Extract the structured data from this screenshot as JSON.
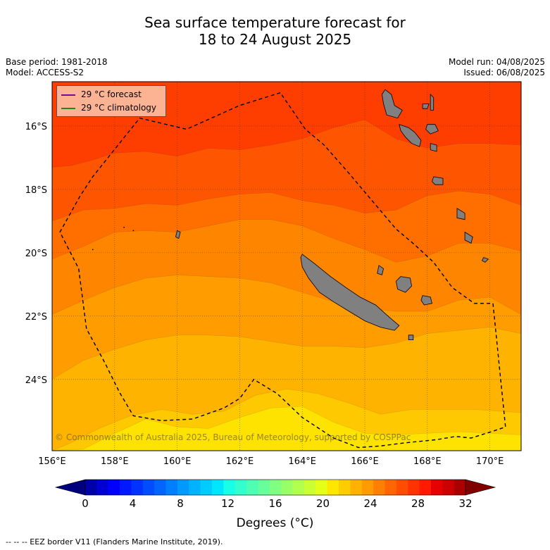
{
  "title": {
    "line1": "Sea surface temperature forecast for",
    "line2": "18 to 24 August 2025"
  },
  "meta": {
    "base_period": "Base period: 1981-2018",
    "model": "Model: ACCESS-S2",
    "model_run": "Model run: 04/08/2025",
    "issued": "Issued: 06/08/2025"
  },
  "legend": {
    "forecast_label": "29 °C  forecast",
    "forecast_color": "#7b0a8c",
    "climatology_label": "29 °C  climatology",
    "climatology_color": "#1a8a1a"
  },
  "map": {
    "lon_range": [
      156,
      171
    ],
    "lat_range": [
      -26.25,
      -14.6
    ],
    "lon_ticks": [
      156,
      158,
      160,
      162,
      164,
      166,
      168,
      170
    ],
    "lon_tick_labels": [
      "156°E",
      "158°E",
      "160°E",
      "162°E",
      "164°E",
      "166°E",
      "168°E",
      "170°E"
    ],
    "lat_ticks": [
      -16,
      -18,
      -20,
      -22,
      -24
    ],
    "lat_tick_labels": [
      "16°S",
      "18°S",
      "20°S",
      "22°S",
      "24°S"
    ],
    "grid": "dotted",
    "copyright": "© Commonwealth of Australia 2025, Bureau of Meteorology, supported by COSPPac",
    "land_color": "#808080",
    "bands": [
      {
        "color": "#fe3d00",
        "upper_boundary": null
      },
      {
        "color": "#fe5600",
        "upper_boundary": [
          [
            156,
            -17.3
          ],
          [
            156.6,
            -17.25
          ],
          [
            157.2,
            -17.1
          ],
          [
            158,
            -16.85
          ],
          [
            159,
            -16.8
          ],
          [
            160,
            -16.95
          ],
          [
            161,
            -16.7
          ],
          [
            162,
            -16.75
          ],
          [
            163,
            -16.6
          ],
          [
            164,
            -16.4
          ],
          [
            165,
            -16.05
          ],
          [
            166,
            -15.8
          ],
          [
            167,
            -16.4
          ],
          [
            168,
            -16.7
          ],
          [
            169,
            -16.55
          ],
          [
            170,
            -16.55
          ],
          [
            171,
            -16.6
          ]
        ]
      },
      {
        "color": "#fe6f00",
        "upper_boundary": [
          [
            156,
            -19.0
          ],
          [
            157,
            -18.65
          ],
          [
            158,
            -18.6
          ],
          [
            159,
            -18.45
          ],
          [
            160,
            -18.5
          ],
          [
            161,
            -18.3
          ],
          [
            162,
            -18.15
          ],
          [
            163,
            -18.1
          ],
          [
            164,
            -18.35
          ],
          [
            165,
            -18.5
          ],
          [
            166,
            -18.75
          ],
          [
            167,
            -18.65
          ],
          [
            168,
            -18.2
          ],
          [
            169,
            -18.05
          ],
          [
            170,
            -18.15
          ],
          [
            171,
            -18.5
          ]
        ]
      },
      {
        "color": "#fe8500",
        "upper_boundary": [
          [
            156,
            -20.2
          ],
          [
            157,
            -19.8
          ],
          [
            158,
            -19.35
          ],
          [
            159,
            -19.3
          ],
          [
            160,
            -19.35
          ],
          [
            161,
            -19.15
          ],
          [
            162,
            -18.95
          ],
          [
            163,
            -18.95
          ],
          [
            164,
            -19.15
          ],
          [
            165,
            -19.55
          ],
          [
            166,
            -19.9
          ],
          [
            167,
            -20.3
          ],
          [
            168,
            -20.1
          ],
          [
            169,
            -19.7
          ],
          [
            170,
            -19.7
          ],
          [
            171,
            -19.95
          ]
        ]
      },
      {
        "color": "#fe9c00",
        "upper_boundary": [
          [
            156,
            -21.95
          ],
          [
            157,
            -21.5
          ],
          [
            158,
            -21.1
          ],
          [
            159,
            -20.8
          ],
          [
            160,
            -20.7
          ],
          [
            161,
            -20.75
          ],
          [
            162,
            -20.8
          ],
          [
            163,
            -20.95
          ],
          [
            164,
            -21.25
          ],
          [
            165,
            -21.55
          ],
          [
            166,
            -21.75
          ],
          [
            167,
            -21.85
          ],
          [
            168,
            -21.85
          ],
          [
            169,
            -21.5
          ],
          [
            170,
            -21.4
          ],
          [
            171,
            -21.95
          ]
        ]
      },
      {
        "color": "#feb300",
        "upper_boundary": [
          [
            156,
            -24.0
          ],
          [
            157,
            -23.4
          ],
          [
            158,
            -23.05
          ],
          [
            159,
            -22.75
          ],
          [
            160,
            -22.6
          ],
          [
            161,
            -22.6
          ],
          [
            162,
            -22.65
          ],
          [
            163,
            -22.8
          ],
          [
            164,
            -22.95
          ],
          [
            165,
            -22.95
          ],
          [
            166,
            -23.0
          ],
          [
            167,
            -22.85
          ],
          [
            168,
            -22.55
          ],
          [
            169,
            -22.45
          ],
          [
            170,
            -22.35
          ],
          [
            171,
            -22.55
          ]
        ]
      },
      {
        "color": "#fec900",
        "upper_boundary": [
          [
            156,
            -26.25
          ],
          [
            156.6,
            -26.0
          ],
          [
            157.5,
            -25.55
          ],
          [
            158.5,
            -25.15
          ],
          [
            159.5,
            -24.95
          ],
          [
            160.5,
            -25.1
          ],
          [
            161.5,
            -25.0
          ],
          [
            162.5,
            -24.5
          ],
          [
            163.5,
            -24.3
          ],
          [
            164.5,
            -24.45
          ],
          [
            165.5,
            -24.75
          ],
          [
            166.5,
            -25.1
          ],
          [
            167.5,
            -24.95
          ],
          [
            168.5,
            -24.95
          ],
          [
            169.5,
            -24.95
          ],
          [
            170.3,
            -25.0
          ],
          [
            171,
            -25.05
          ]
        ]
      },
      {
        "color": "#fee200",
        "upper_boundary": [
          [
            156,
            -26.25
          ],
          [
            157,
            -26.2
          ],
          [
            158,
            -25.7
          ],
          [
            159,
            -25.25
          ],
          [
            160,
            -25.5
          ],
          [
            161,
            -25.55
          ],
          [
            162,
            -25.2
          ],
          [
            163,
            -24.9
          ],
          [
            164,
            -24.85
          ],
          [
            165,
            -25.35
          ],
          [
            166,
            -25.7
          ],
          [
            167,
            -25.75
          ],
          [
            168,
            -25.7
          ],
          [
            169,
            -25.65
          ],
          [
            170,
            -25.7
          ],
          [
            171,
            -25.75
          ]
        ]
      }
    ],
    "eez_border": [
      [
        163.3,
        -14.95
      ],
      [
        162.0,
        -15.35
      ],
      [
        160.3,
        -16.1
      ],
      [
        158.8,
        -15.75
      ],
      [
        157.3,
        -17.6
      ],
      [
        156.9,
        -18.2
      ],
      [
        156.25,
        -19.35
      ],
      [
        156.85,
        -20.5
      ],
      [
        157.1,
        -22.4
      ],
      [
        157.4,
        -22.95
      ],
      [
        157.7,
        -23.5
      ],
      [
        158.15,
        -24.4
      ],
      [
        158.6,
        -25.15
      ],
      [
        159.5,
        -25.3
      ],
      [
        160.5,
        -25.25
      ],
      [
        161.5,
        -24.9
      ],
      [
        162.0,
        -24.6
      ],
      [
        162.45,
        -24.0
      ],
      [
        163.2,
        -24.45
      ],
      [
        164.0,
        -25.2
      ],
      [
        165.0,
        -25.85
      ],
      [
        165.8,
        -26.15
      ],
      [
        166.5,
        -26.1
      ],
      [
        167.3,
        -26.0
      ],
      [
        168.3,
        -25.9
      ],
      [
        168.9,
        -25.8
      ],
      [
        169.4,
        -25.85
      ],
      [
        170.05,
        -25.65
      ],
      [
        170.5,
        -25.5
      ],
      [
        170.1,
        -21.6
      ],
      [
        169.5,
        -21.6
      ],
      [
        168.8,
        -21.1
      ],
      [
        168.2,
        -20.3
      ],
      [
        167.6,
        -19.75
      ],
      [
        167.0,
        -19.25
      ],
      [
        166.1,
        -18.2
      ],
      [
        165.5,
        -17.5
      ],
      [
        164.7,
        -16.6
      ],
      [
        164.1,
        -16.1
      ],
      [
        163.3,
        -14.95
      ]
    ],
    "islands": [
      [
        [
          164.0,
          -20.05
        ],
        [
          164.4,
          -20.35
        ],
        [
          164.9,
          -20.75
        ],
        [
          165.4,
          -21.1
        ],
        [
          165.85,
          -21.4
        ],
        [
          166.35,
          -21.65
        ],
        [
          166.8,
          -22.05
        ],
        [
          167.1,
          -22.3
        ],
        [
          166.95,
          -22.45
        ],
        [
          166.5,
          -22.35
        ],
        [
          166.0,
          -22.15
        ],
        [
          165.5,
          -21.85
        ],
        [
          165.0,
          -21.55
        ],
        [
          164.55,
          -21.25
        ],
        [
          164.2,
          -20.8
        ],
        [
          164.0,
          -20.45
        ],
        [
          163.95,
          -20.15
        ]
      ],
      [
        [
          167.15,
          -20.75
        ],
        [
          167.45,
          -20.8
        ],
        [
          167.5,
          -21.05
        ],
        [
          167.3,
          -21.25
        ],
        [
          167.05,
          -21.15
        ],
        [
          167.0,
          -20.9
        ]
      ],
      [
        [
          167.85,
          -21.35
        ],
        [
          168.1,
          -21.4
        ],
        [
          168.15,
          -21.6
        ],
        [
          167.9,
          -21.65
        ],
        [
          167.8,
          -21.5
        ]
      ],
      [
        [
          166.45,
          -20.4
        ],
        [
          166.6,
          -20.5
        ],
        [
          166.55,
          -20.7
        ],
        [
          166.4,
          -20.65
        ]
      ],
      [
        [
          167.4,
          -22.6
        ],
        [
          167.55,
          -22.6
        ],
        [
          167.55,
          -22.75
        ],
        [
          167.4,
          -22.75
        ]
      ],
      [
        [
          166.65,
          -14.85
        ],
        [
          166.85,
          -15.0
        ],
        [
          166.95,
          -15.35
        ],
        [
          167.2,
          -15.5
        ],
        [
          167.05,
          -15.75
        ],
        [
          166.7,
          -15.65
        ],
        [
          166.6,
          -15.3
        ],
        [
          166.55,
          -15.0
        ]
      ],
      [
        [
          167.1,
          -15.95
        ],
        [
          167.4,
          -16.05
        ],
        [
          167.6,
          -16.2
        ],
        [
          167.8,
          -16.45
        ],
        [
          167.75,
          -16.65
        ],
        [
          167.5,
          -16.55
        ],
        [
          167.3,
          -16.35
        ],
        [
          167.15,
          -16.15
        ]
      ],
      [
        [
          167.85,
          -15.3
        ],
        [
          168.05,
          -15.3
        ],
        [
          168.0,
          -15.45
        ],
        [
          167.85,
          -15.45
        ]
      ],
      [
        [
          168.1,
          -15.0
        ],
        [
          168.2,
          -15.1
        ],
        [
          168.2,
          -15.5
        ],
        [
          168.1,
          -15.5
        ]
      ],
      [
        [
          168.0,
          -15.95
        ],
        [
          168.25,
          -15.95
        ],
        [
          168.35,
          -16.15
        ],
        [
          168.1,
          -16.25
        ],
        [
          167.95,
          -16.1
        ]
      ],
      [
        [
          168.1,
          -16.55
        ],
        [
          168.3,
          -16.6
        ],
        [
          168.3,
          -16.8
        ],
        [
          168.1,
          -16.75
        ]
      ],
      [
        [
          168.2,
          -17.6
        ],
        [
          168.5,
          -17.65
        ],
        [
          168.5,
          -17.85
        ],
        [
          168.25,
          -17.85
        ],
        [
          168.15,
          -17.75
        ]
      ],
      [
        [
          168.95,
          -18.6
        ],
        [
          169.2,
          -18.75
        ],
        [
          169.2,
          -18.95
        ],
        [
          168.95,
          -18.9
        ]
      ],
      [
        [
          169.2,
          -19.35
        ],
        [
          169.45,
          -19.5
        ],
        [
          169.4,
          -19.7
        ],
        [
          169.2,
          -19.6
        ]
      ],
      [
        [
          169.8,
          -20.15
        ],
        [
          169.95,
          -20.2
        ],
        [
          169.85,
          -20.3
        ],
        [
          169.75,
          -20.25
        ]
      ],
      [
        [
          160.0,
          -19.3
        ],
        [
          160.1,
          -19.35
        ],
        [
          160.05,
          -19.55
        ],
        [
          159.95,
          -19.5
        ]
      ]
    ]
  },
  "colorbar": {
    "colors": [
      "#00007f",
      "#0000aa",
      "#0000d4",
      "#0000ff",
      "#0019ff",
      "#0033ff",
      "#004dff",
      "#0066ff",
      "#0080ff",
      "#009aff",
      "#00b3ff",
      "#00ccff",
      "#00e6ff",
      "#19ffe6",
      "#33ffcc",
      "#4dffb3",
      "#66ff99",
      "#80ff80",
      "#99ff66",
      "#b3ff4d",
      "#ccff33",
      "#e6ff19",
      "#ffe600",
      "#ffcc00",
      "#ffb300",
      "#ff9a00",
      "#ff8000",
      "#ff6600",
      "#ff4d00",
      "#ff3300",
      "#ff1a00",
      "#e60000",
      "#cc0000",
      "#aa0000",
      "#800000"
    ],
    "tick_labels": [
      "0",
      "4",
      "8",
      "12",
      "16",
      "20",
      "24",
      "28",
      "32"
    ],
    "label": "Degrees (°C)"
  },
  "footer": "--  --  -- EEZ border V11 (Flanders Marine Institute, 2019)."
}
